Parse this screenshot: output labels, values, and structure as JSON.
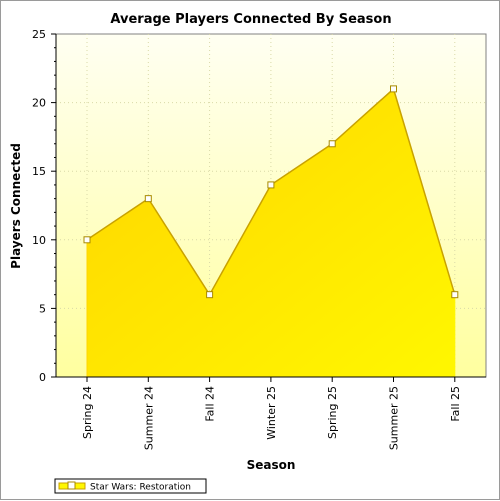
{
  "chart_data": {
    "type": "area",
    "title": "Average Players Connected By Season",
    "xlabel": "Season",
    "ylabel": "Players Connected",
    "categories": [
      "Spring 24",
      "Summer 24",
      "Fall 24",
      "Winter 25",
      "Spring 25",
      "Summer 25",
      "Fall 25"
    ],
    "series": [
      {
        "name": "Star Wars: Restoration",
        "values": [
          10,
          13,
          6,
          14,
          17,
          21,
          6
        ]
      }
    ],
    "ylim": [
      0,
      25
    ],
    "yticks": [
      "0",
      "5",
      "10",
      "15",
      "20",
      "25"
    ],
    "grid": true,
    "legend_position": "bottom-left",
    "colors": {
      "plot_bg_top": "#fffff2",
      "plot_bg_bottom": "#ffff9f",
      "area_fill_light": "#fff700",
      "area_fill_dark": "#ffd500",
      "area_line": "#c9a200",
      "marker_fill": "#ffffff",
      "marker_stroke": "#a88a00",
      "grid": "#d9d9a8"
    }
  }
}
